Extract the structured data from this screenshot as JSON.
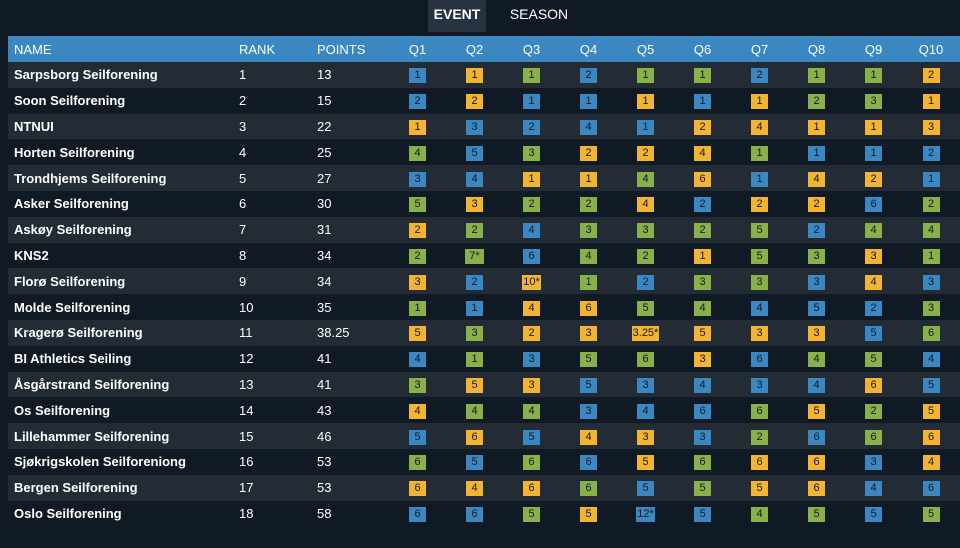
{
  "tabs": [
    {
      "label": "EVENT",
      "active": true
    },
    {
      "label": "SEASON",
      "active": false
    }
  ],
  "colors": {
    "header_bg": "#3a87c2",
    "row_odd": "#232b35",
    "row_even": "#101a24",
    "badge_color_1": "#f2b431",
    "badge_color_2": "#8ab04a",
    "badge_color_3": "#3a87c2"
  },
  "table": {
    "headers": [
      "NAME",
      "RANK",
      "POINTS",
      "Q1",
      "Q2",
      "Q3",
      "Q4",
      "Q5",
      "Q6",
      "Q7",
      "Q8",
      "Q9",
      "Q10"
    ],
    "rows": [
      {
        "name": "Sarpsborg Seilforening",
        "rank": "1",
        "points": "13",
        "q": [
          [
            "1",
            3
          ],
          [
            "1",
            1
          ],
          [
            "1",
            2
          ],
          [
            "2",
            3
          ],
          [
            "1",
            2
          ],
          [
            "1",
            2
          ],
          [
            "2",
            3
          ],
          [
            "1",
            2
          ],
          [
            "1",
            2
          ],
          [
            "2",
            1
          ]
        ]
      },
      {
        "name": "Soon Seilforening",
        "rank": "2",
        "points": "15",
        "q": [
          [
            "2",
            3
          ],
          [
            "2",
            1
          ],
          [
            "1",
            3
          ],
          [
            "1",
            3
          ],
          [
            "1",
            1
          ],
          [
            "1",
            3
          ],
          [
            "1",
            1
          ],
          [
            "2",
            2
          ],
          [
            "3",
            2
          ],
          [
            "1",
            1
          ]
        ]
      },
      {
        "name": "NTNUI",
        "rank": "3",
        "points": "22",
        "q": [
          [
            "1",
            1
          ],
          [
            "3",
            3
          ],
          [
            "2",
            3
          ],
          [
            "4",
            3
          ],
          [
            "1",
            3
          ],
          [
            "2",
            1
          ],
          [
            "4",
            1
          ],
          [
            "1",
            1
          ],
          [
            "1",
            1
          ],
          [
            "3",
            1
          ]
        ]
      },
      {
        "name": "Horten Seilforening",
        "rank": "4",
        "points": "25",
        "q": [
          [
            "4",
            2
          ],
          [
            "5",
            3
          ],
          [
            "3",
            2
          ],
          [
            "2",
            1
          ],
          [
            "2",
            1
          ],
          [
            "4",
            1
          ],
          [
            "1",
            2
          ],
          [
            "1",
            3
          ],
          [
            "1",
            3
          ],
          [
            "2",
            3
          ]
        ]
      },
      {
        "name": "Trondhjems Seilforening",
        "rank": "5",
        "points": "27",
        "q": [
          [
            "3",
            3
          ],
          [
            "4",
            3
          ],
          [
            "1",
            1
          ],
          [
            "1",
            1
          ],
          [
            "4",
            2
          ],
          [
            "6",
            1
          ],
          [
            "1",
            3
          ],
          [
            "4",
            1
          ],
          [
            "2",
            1
          ],
          [
            "1",
            3
          ]
        ]
      },
      {
        "name": "Asker Seilforening",
        "rank": "6",
        "points": "30",
        "q": [
          [
            "5",
            2
          ],
          [
            "3",
            1
          ],
          [
            "2",
            2
          ],
          [
            "2",
            2
          ],
          [
            "4",
            1
          ],
          [
            "2",
            3
          ],
          [
            "2",
            1
          ],
          [
            "2",
            1
          ],
          [
            "6",
            3
          ],
          [
            "2",
            2
          ]
        ]
      },
      {
        "name": "Askøy Seilforening",
        "rank": "7",
        "points": "31",
        "q": [
          [
            "2",
            1
          ],
          [
            "2",
            2
          ],
          [
            "4",
            3
          ],
          [
            "3",
            2
          ],
          [
            "3",
            2
          ],
          [
            "2",
            2
          ],
          [
            "5",
            2
          ],
          [
            "2",
            3
          ],
          [
            "4",
            2
          ],
          [
            "4",
            2
          ]
        ]
      },
      {
        "name": "KNS2",
        "rank": "8",
        "points": "34",
        "q": [
          [
            "2",
            2
          ],
          [
            "7*",
            2
          ],
          [
            "6",
            3
          ],
          [
            "4",
            2
          ],
          [
            "2",
            2
          ],
          [
            "1",
            1
          ],
          [
            "5",
            2
          ],
          [
            "3",
            2
          ],
          [
            "3",
            1
          ],
          [
            "1",
            2
          ]
        ]
      },
      {
        "name": "Florø Seilforening",
        "rank": "9",
        "points": "34",
        "q": [
          [
            "3",
            1
          ],
          [
            "2",
            3
          ],
          [
            "10*",
            1
          ],
          [
            "1",
            2
          ],
          [
            "2",
            3
          ],
          [
            "3",
            2
          ],
          [
            "3",
            2
          ],
          [
            "3",
            3
          ],
          [
            "4",
            1
          ],
          [
            "3",
            3
          ]
        ]
      },
      {
        "name": "Molde Seilforening",
        "rank": "10",
        "points": "35",
        "q": [
          [
            "1",
            2
          ],
          [
            "1",
            3
          ],
          [
            "4",
            1
          ],
          [
            "6",
            1
          ],
          [
            "5",
            2
          ],
          [
            "4",
            2
          ],
          [
            "4",
            3
          ],
          [
            "5",
            3
          ],
          [
            "2",
            3
          ],
          [
            "3",
            2
          ]
        ]
      },
      {
        "name": "Kragerø Seilforening",
        "rank": "11",
        "points": "38.25",
        "q": [
          [
            "5",
            1
          ],
          [
            "3",
            2
          ],
          [
            "2",
            1
          ],
          [
            "3",
            1
          ],
          [
            "3.25*",
            1
          ],
          [
            "5",
            1
          ],
          [
            "3",
            1
          ],
          [
            "3",
            1
          ],
          [
            "5",
            3
          ],
          [
            "6",
            2
          ]
        ]
      },
      {
        "name": "BI Athletics Seiling",
        "rank": "12",
        "points": "41",
        "q": [
          [
            "4",
            3
          ],
          [
            "1",
            2
          ],
          [
            "3",
            3
          ],
          [
            "5",
            2
          ],
          [
            "6",
            2
          ],
          [
            "3",
            1
          ],
          [
            "6",
            3
          ],
          [
            "4",
            2
          ],
          [
            "5",
            2
          ],
          [
            "4",
            3
          ]
        ]
      },
      {
        "name": "Åsgårstrand Seilforening",
        "rank": "13",
        "points": "41",
        "q": [
          [
            "3",
            2
          ],
          [
            "5",
            1
          ],
          [
            "3",
            1
          ],
          [
            "5",
            3
          ],
          [
            "3",
            3
          ],
          [
            "4",
            3
          ],
          [
            "3",
            3
          ],
          [
            "4",
            3
          ],
          [
            "6",
            1
          ],
          [
            "5",
            3
          ]
        ]
      },
      {
        "name": "Os Seilforening",
        "rank": "14",
        "points": "43",
        "q": [
          [
            "4",
            1
          ],
          [
            "4",
            2
          ],
          [
            "4",
            2
          ],
          [
            "3",
            3
          ],
          [
            "4",
            3
          ],
          [
            "6",
            3
          ],
          [
            "6",
            2
          ],
          [
            "5",
            1
          ],
          [
            "2",
            2
          ],
          [
            "5",
            1
          ]
        ]
      },
      {
        "name": "Lillehammer Seilforening",
        "rank": "15",
        "points": "46",
        "q": [
          [
            "5",
            3
          ],
          [
            "6",
            1
          ],
          [
            "5",
            3
          ],
          [
            "4",
            1
          ],
          [
            "3",
            1
          ],
          [
            "3",
            3
          ],
          [
            "2",
            2
          ],
          [
            "6",
            3
          ],
          [
            "6",
            2
          ],
          [
            "6",
            1
          ]
        ]
      },
      {
        "name": "Sjøkrigskolen Seilforeniong",
        "rank": "16",
        "points": "53",
        "q": [
          [
            "6",
            2
          ],
          [
            "5",
            3
          ],
          [
            "6",
            2
          ],
          [
            "6",
            3
          ],
          [
            "5",
            1
          ],
          [
            "6",
            2
          ],
          [
            "6",
            1
          ],
          [
            "6",
            1
          ],
          [
            "3",
            3
          ],
          [
            "4",
            1
          ]
        ]
      },
      {
        "name": "Bergen Seilforening",
        "rank": "17",
        "points": "53",
        "q": [
          [
            "6",
            1
          ],
          [
            "4",
            1
          ],
          [
            "6",
            1
          ],
          [
            "6",
            2
          ],
          [
            "5",
            3
          ],
          [
            "5",
            2
          ],
          [
            "5",
            1
          ],
          [
            "6",
            1
          ],
          [
            "4",
            3
          ],
          [
            "6",
            3
          ]
        ]
      },
      {
        "name": "Oslo Seilforening",
        "rank": "18",
        "points": "58",
        "q": [
          [
            "6",
            3
          ],
          [
            "6",
            3
          ],
          [
            "5",
            2
          ],
          [
            "5",
            1
          ],
          [
            "12*",
            3
          ],
          [
            "5",
            3
          ],
          [
            "4",
            2
          ],
          [
            "5",
            2
          ],
          [
            "5",
            3
          ],
          [
            "5",
            2
          ]
        ]
      }
    ]
  }
}
